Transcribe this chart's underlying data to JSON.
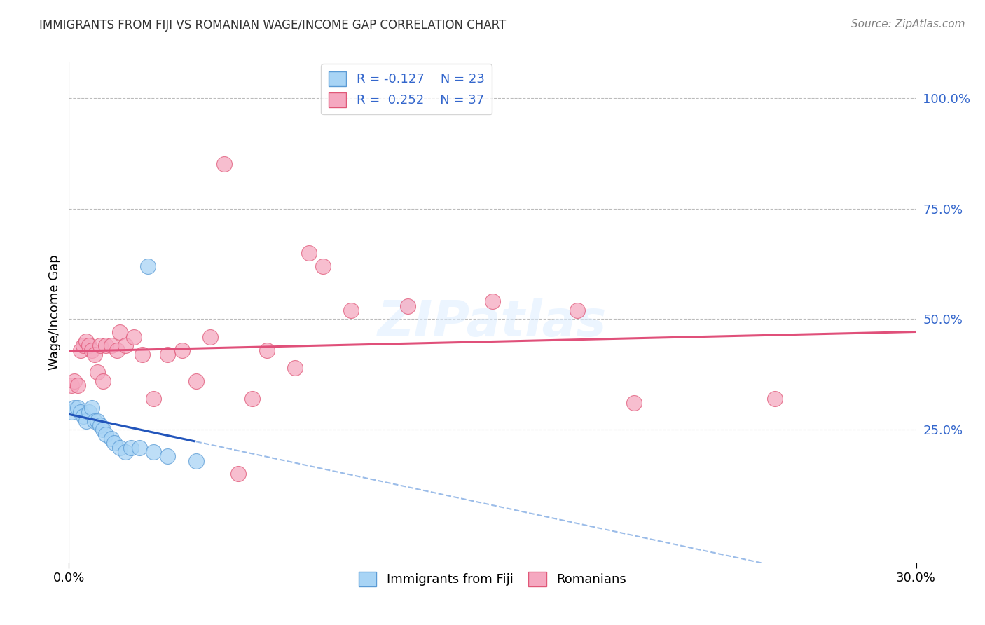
{
  "title": "IMMIGRANTS FROM FIJI VS ROMANIAN WAGE/INCOME GAP CORRELATION CHART",
  "source": "Source: ZipAtlas.com",
  "ylabel": "Wage/Income Gap",
  "right_yticks": [
    25.0,
    50.0,
    75.0,
    100.0
  ],
  "legend_fiji_R": "R = -0.127",
  "legend_fiji_N": "N = 23",
  "legend_rom_R": "R =  0.252",
  "legend_rom_N": "N = 37",
  "fiji_color": "#A8D4F5",
  "fiji_edge_color": "#5B9BD5",
  "romani_color": "#F5A8C0",
  "romani_edge_color": "#E05878",
  "trend_fiji_solid_color": "#2255BB",
  "trend_fiji_dash_color": "#6699DD",
  "trend_romani_color": "#E0507A",
  "fiji_x": [
    0.1,
    0.2,
    0.3,
    0.4,
    0.5,
    0.6,
    0.7,
    0.8,
    0.9,
    1.0,
    1.1,
    1.2,
    1.3,
    1.5,
    1.6,
    1.8,
    2.0,
    2.2,
    2.5,
    2.8,
    3.0,
    3.5,
    4.5
  ],
  "fiji_y": [
    29.0,
    30.0,
    30.0,
    29.0,
    28.0,
    27.0,
    29.0,
    30.0,
    27.0,
    27.0,
    26.0,
    25.0,
    24.0,
    23.0,
    22.0,
    21.0,
    20.0,
    21.0,
    21.0,
    62.0,
    20.0,
    19.0,
    18.0
  ],
  "romani_x": [
    0.1,
    0.2,
    0.3,
    0.4,
    0.5,
    0.6,
    0.7,
    0.8,
    0.9,
    1.0,
    1.1,
    1.2,
    1.3,
    1.5,
    1.7,
    1.8,
    2.0,
    2.3,
    2.6,
    3.0,
    3.5,
    4.0,
    4.5,
    5.0,
    5.5,
    6.0,
    6.5,
    7.0,
    8.0,
    8.5,
    9.0,
    10.0,
    12.0,
    15.0,
    18.0,
    20.0,
    25.0
  ],
  "romani_y": [
    35.0,
    36.0,
    35.0,
    43.0,
    44.0,
    45.0,
    44.0,
    43.0,
    42.0,
    38.0,
    44.0,
    36.0,
    44.0,
    44.0,
    43.0,
    47.0,
    44.0,
    46.0,
    42.0,
    32.0,
    42.0,
    43.0,
    36.0,
    46.0,
    85.0,
    15.0,
    32.0,
    43.0,
    39.0,
    65.0,
    62.0,
    52.0,
    53.0,
    54.0,
    52.0,
    31.0,
    32.0
  ],
  "xmin": 0.0,
  "xmax": 30.0,
  "ymin": -5.0,
  "ymax": 108.0,
  "background_color": "#FFFFFF",
  "grid_color": "#BBBBBB"
}
